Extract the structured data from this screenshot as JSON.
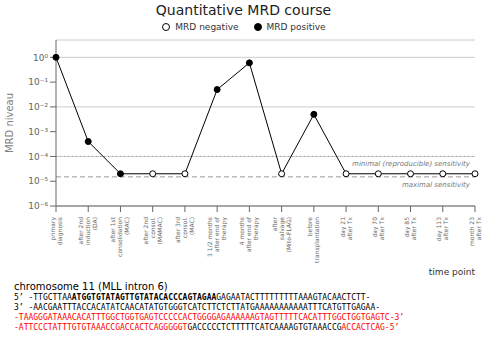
{
  "chart_data": {
    "type": "line",
    "title": "Quantitative MRD course",
    "xlabel": "time point",
    "ylabel": "MRD niveau",
    "log": "y",
    "grid": true,
    "color": "#000000",
    "categories": [
      "primary\ndiagnosis",
      "after 2nd\ninduction\n(DA)",
      "after 1st\nconsolidation\n(MAC)",
      "after 2nd\nconsol.\n(MAMAC)",
      "after 3rd\nconsol.\n(MAC)",
      "3 1/2 months\nafter end of\ntherapy",
      "4 months\nafter end of\ntherapy",
      "after\nsalvage\n(Mito-FLAG)",
      "before\ntransplantation",
      "day 21\nafter Tx",
      "day 70\nafter Tx",
      "day 85\nafter Tx",
      "day 113\nafter Tx",
      "month 23\nafter Tx"
    ],
    "series": [
      {
        "name": "MRD negative",
        "color": "#000000",
        "marker": "open",
        "values": [
          null,
          null,
          null,
          2e-05,
          2e-05,
          null,
          null,
          2e-05,
          null,
          2e-05,
          2e-05,
          2e-05,
          2e-05,
          2e-05
        ]
      },
      {
        "name": "MRD positive",
        "color": "#000000",
        "marker": "filled",
        "values": [
          1.0,
          0.0004,
          2e-05,
          null,
          null,
          0.05,
          0.6,
          null,
          0.005,
          null,
          null,
          null,
          null,
          null
        ]
      }
    ],
    "ylim": [
      1e-06,
      5.011872336272722
    ],
    "yticks": [
      {
        "value": 1e-06,
        "label": "10⁻⁶"
      },
      {
        "value": 1e-05,
        "label": "10⁻⁵"
      },
      {
        "value": 0.0001,
        "label": "10⁻⁴"
      },
      {
        "value": 0.001,
        "label": "10⁻³"
      },
      {
        "value": 0.01,
        "label": "10⁻²"
      },
      {
        "value": 0.1,
        "label": "10⁻¹"
      },
      {
        "value": 1,
        "label": "10⁰"
      }
    ],
    "reference_lines": [
      {
        "value": 0.0001,
        "label": "minimal (reproducible) sensitivity",
        "line_style": "dotted"
      },
      {
        "value": 1.5e-05,
        "label": "maximal sensitivity",
        "line_style": "dashed"
      }
    ],
    "annotations": [
      {
        "text": "chromosome 11 (MLL intron 6)"
      },
      {
        "segments": [
          {
            "text": "5’ -TTGCTTAA"
          },
          {
            "text": "ATGGTGTATAGTTGTATACACCCAGTAGAA",
            "weight": "bold"
          },
          {
            "text": "GAGAATACTTTTTTTTTAAAGTACAACTCTT-"
          }
        ]
      },
      {
        "segments": [
          {
            "text": "3’ -AACGAATTTACCACATATCAACATATGTGGGTCATCTTCTCTTATGAAAAAAAAAAATTTCATGTTGAGAA-"
          }
        ]
      },
      {
        "segments": [
          {
            "text": "-TAAGGGATAAACACATTTGGCTGGTGAGTCCCCCACTGGGGAGAAAAAAGTAGTTTTTCACATTTGGCTGGTGAGTC-3’",
            "color": "red"
          }
        ]
      },
      {
        "segments": [
          {
            "text": "-ATTCCCTATTTGTGTAAACCGACCACTCAGGGGGT",
            "color": "red"
          },
          {
            "text": "GACCCCCTCTTTTTCATCAAAAGTGTAAACCG"
          },
          {
            "text": "ACCACTCAG-5’",
            "color": "red"
          }
        ]
      }
    ]
  }
}
